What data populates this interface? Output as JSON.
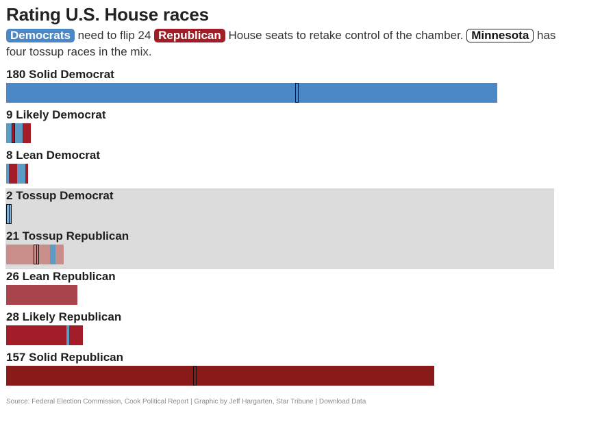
{
  "header": {
    "title": "Rating U.S. House races",
    "chip_democrats": "Democrats",
    "text_1": " need to flip 24 ",
    "chip_republican": "Republican",
    "text_2": " House seats to retake control of the chamber. ",
    "chip_minnesota": "Minnesota",
    "text_3": " has four tossup races in the mix."
  },
  "colors": {
    "solid_dem": "#4a88c8",
    "likely_lean_dem_seg": "#5b9bc6",
    "tossup_dem": "#7fb3d9",
    "rep_red": "#a31d28",
    "tossup_rep": "#c98d8a",
    "lean_rep": "#a8444c",
    "likely_rep": "#a31d28",
    "solid_rep": "#8a1a1a",
    "tossup_band": "#dcdcdc",
    "minnesota_outline": "#111111"
  },
  "chart_data": {
    "type": "bar",
    "title": "Rating U.S. House races",
    "orientation": "horizontal",
    "categories": [
      {
        "label": "Solid Democrat",
        "value": 180,
        "party_mix": [
          {
            "party": "D",
            "seats": 180
          }
        ],
        "minnesota_seats": 1
      },
      {
        "label": "Likely Democrat",
        "value": 9,
        "party_mix": [
          {
            "party": "D",
            "seats": 2
          },
          {
            "party": "R",
            "seats": 1
          },
          {
            "party": "D",
            "seats": 3
          },
          {
            "party": "R",
            "seats": 3
          }
        ],
        "minnesota_seats": 1
      },
      {
        "label": "Lean Democrat",
        "value": 8,
        "party_mix": [
          {
            "party": "D",
            "seats": 1
          },
          {
            "party": "R",
            "seats": 3
          },
          {
            "party": "D",
            "seats": 3
          },
          {
            "party": "R",
            "seats": 1
          }
        ],
        "minnesota_seats": 0
      },
      {
        "label": "Tossup Democrat",
        "value": 2,
        "party_mix": [
          {
            "party": "D",
            "seats": 2
          }
        ],
        "minnesota_seats": 2
      },
      {
        "label": "Tossup Republican",
        "value": 21,
        "party_mix": [
          {
            "party": "R",
            "seats": 16
          },
          {
            "party": "D",
            "seats": 2
          },
          {
            "party": "R",
            "seats": 3
          }
        ],
        "minnesota_seats": 2
      },
      {
        "label": "Lean Republican",
        "value": 26,
        "party_mix": [
          {
            "party": "R",
            "seats": 26
          }
        ],
        "minnesota_seats": 0
      },
      {
        "label": "Likely Republican",
        "value": 28,
        "party_mix": [
          {
            "party": "R",
            "seats": 22
          },
          {
            "party": "D",
            "seats": 1
          },
          {
            "party": "R",
            "seats": 5
          }
        ],
        "minnesota_seats": 0
      },
      {
        "label": "Solid Republican",
        "value": 157,
        "party_mix": [
          {
            "party": "R",
            "seats": 157
          }
        ],
        "minnesota_seats": 1
      }
    ],
    "highlighted_band": [
      "Tossup Democrat",
      "Tossup Republican"
    ],
    "source": "Source: Federal Election Commission, Cook Political Report | Graphic by Jeff Hargarten, Star Tribune | Download Data"
  }
}
